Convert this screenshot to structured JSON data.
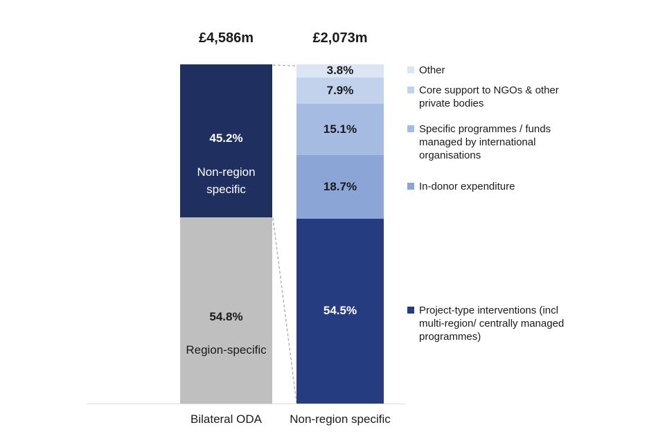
{
  "chart_data": {
    "type": "bar",
    "subtype": "stacked-bar-breakdown",
    "ylim": [
      0,
      100
    ],
    "grid": false,
    "legend_position": "right",
    "bars": [
      {
        "axis_label": "Bilateral ODA",
        "total_label": "£4,586m",
        "segments_top_to_bottom": [
          {
            "value": 45.2,
            "label": "45.2%",
            "sublabel": "Non-region specific",
            "color": "#1e2f60",
            "text_color": "#ffffff"
          },
          {
            "value": 54.8,
            "label": "54.8%",
            "sublabel": "Region-specific",
            "color": "#bfbfbf",
            "text_color": "#1a1a1a"
          }
        ]
      },
      {
        "axis_label": "Non-region specific",
        "total_label": "£2,073m",
        "segments_top_to_bottom": [
          {
            "value": 3.8,
            "label": "3.8%",
            "color": "#dce5f4",
            "text_color": "#1a1a1a",
            "legend": "Other"
          },
          {
            "value": 7.9,
            "label": "7.9%",
            "color": "#c2d2ec",
            "text_color": "#1a1a1a",
            "legend": "Core support to NGOs & other private bodies"
          },
          {
            "value": 15.1,
            "label": "15.1%",
            "color": "#a5bbe2",
            "text_color": "#1a1a1a",
            "legend": "Specific programmes / funds managed by international organisations"
          },
          {
            "value": 18.7,
            "label": "18.7%",
            "color": "#8aa5d6",
            "text_color": "#1a1a1a",
            "legend": "In-donor expenditure"
          },
          {
            "value": 54.5,
            "label": "54.5%",
            "color": "#263c80",
            "text_color": "#ffffff",
            "legend": "Project-type interventions (incl multi-region/ centrally managed programmes)"
          }
        ]
      }
    ]
  }
}
